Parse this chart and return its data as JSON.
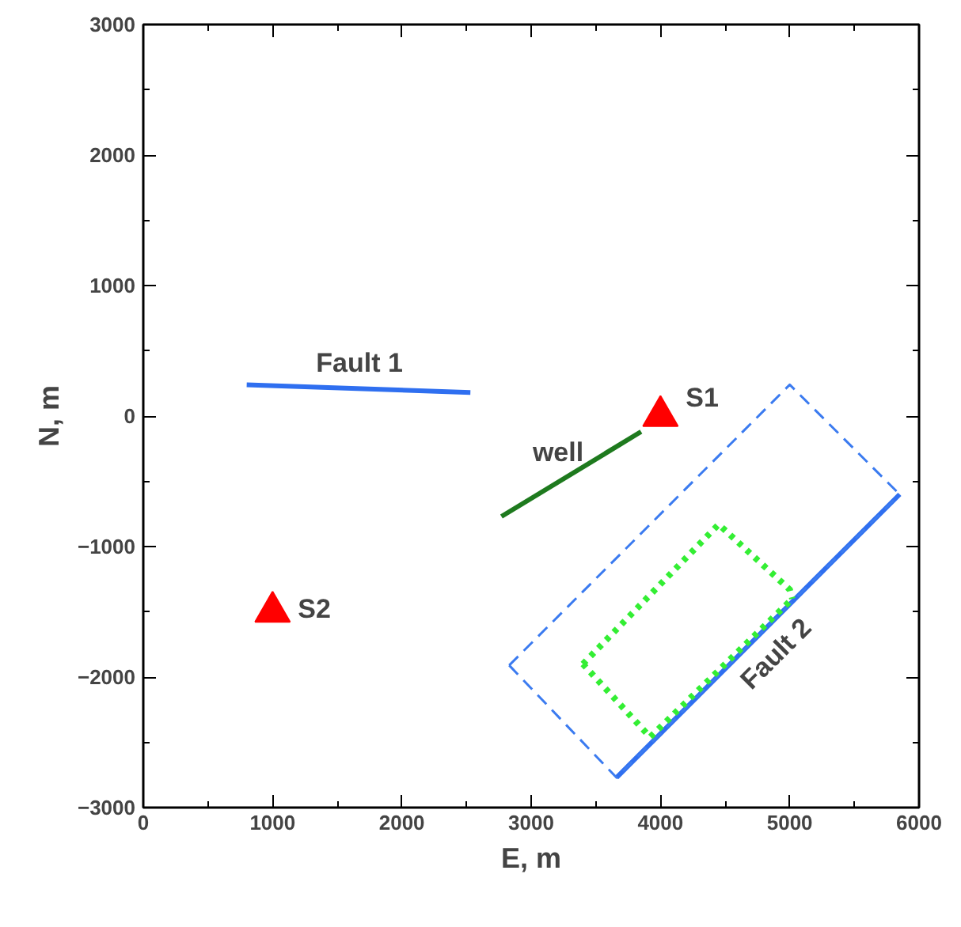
{
  "chart_data": {
    "type": "line",
    "xlabel": "E, m",
    "ylabel": "N, m",
    "xlim": [
      0,
      6000
    ],
    "ylim": [
      -3000,
      3000
    ],
    "xticks": [
      0,
      1000,
      2000,
      3000,
      4000,
      5000,
      6000
    ],
    "yticks": [
      -3000,
      -2000,
      -1000,
      0,
      1000,
      2000,
      3000
    ],
    "grid": false,
    "series": [
      {
        "name": "Fault 1",
        "color": "#2f6ff0",
        "line_style": "solid",
        "x": [
          800,
          2530
        ],
        "values": [
          240,
          180
        ]
      },
      {
        "name": "well",
        "color": "#1e7a1e",
        "line_style": "solid",
        "x": [
          2770,
          3850
        ],
        "values": [
          -770,
          -120
        ]
      },
      {
        "name": "Fault 2",
        "color": "#2f6ff0",
        "line_style": "solid",
        "x": [
          3660,
          5850
        ],
        "values": [
          -2770,
          -600
        ]
      },
      {
        "color": "#3b7bf0",
        "line_style": "dashed",
        "x": [
          2830,
          5000,
          5850
        ],
        "values": [
          -1910,
          240,
          -600
        ]
      },
      {
        "color": "#3b7bf0",
        "line_style": "dashed",
        "x": [
          2830,
          3660,
          5850
        ],
        "values": [
          -1910,
          -2770,
          -600
        ]
      },
      {
        "color": "#33ee33",
        "line_style": "dotted",
        "x": [
          3400,
          4450,
          5000,
          5020
        ],
        "values": [
          -1900,
          -830,
          -1330,
          -1400
        ]
      },
      {
        "color": "#33ee33",
        "line_style": "dotted",
        "x": [
          3400,
          3920,
          5020
        ],
        "values": [
          -1900,
          -2460,
          -1400
        ]
      },
      {
        "name": "S1",
        "type": "scatter",
        "marker": "triangle",
        "color": "#ff0000",
        "x": [
          4000
        ],
        "values": [
          0
        ]
      },
      {
        "name": "S2",
        "type": "scatter",
        "marker": "triangle",
        "color": "#ff0000",
        "x": [
          1000
        ],
        "values": [
          -1500
        ]
      }
    ]
  }
}
